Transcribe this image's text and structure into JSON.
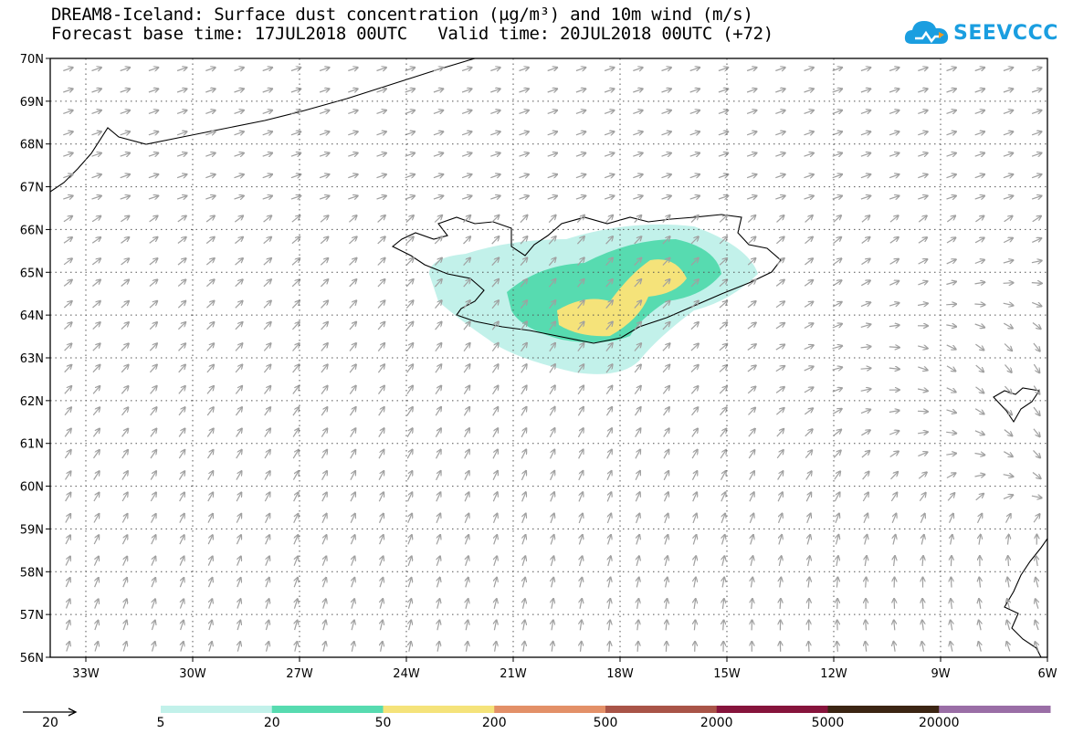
{
  "title": {
    "line1": "DREAM8-Iceland: Surface dust concentration (µg/m³) and 10m wind (m/s)",
    "line2": "Forecast base time: 17JUL2018 00UTC   Valid time: 20JUL2018 00UTC (+72)"
  },
  "logo": {
    "text": "SEEVCCC",
    "icon": "cloud-icon",
    "color": "#1a9ee0"
  },
  "map": {
    "lat_labels": [
      "70N",
      "69N",
      "68N",
      "67N",
      "66N",
      "65N",
      "64N",
      "63N",
      "62N",
      "61N",
      "60N",
      "59N",
      "58N",
      "57N",
      "56N"
    ],
    "lon_labels": [
      "33W",
      "30W",
      "27W",
      "24W",
      "21W",
      "18W",
      "15W",
      "12W",
      "9W",
      "6W"
    ],
    "extent": {
      "lon_min": -34,
      "lon_max": -6,
      "lat_min": 56,
      "lat_max": 70
    }
  },
  "legend": {
    "vector_ref": "20",
    "colors": [
      "#c2f1ea",
      "#57dbb0",
      "#f5e37a",
      "#e39068",
      "#a95448",
      "#86143c",
      "#3c2513",
      "#9a6ea6"
    ],
    "labels": [
      "5",
      "20",
      "50",
      "200",
      "500",
      "2000",
      "5000",
      "20000"
    ]
  }
}
